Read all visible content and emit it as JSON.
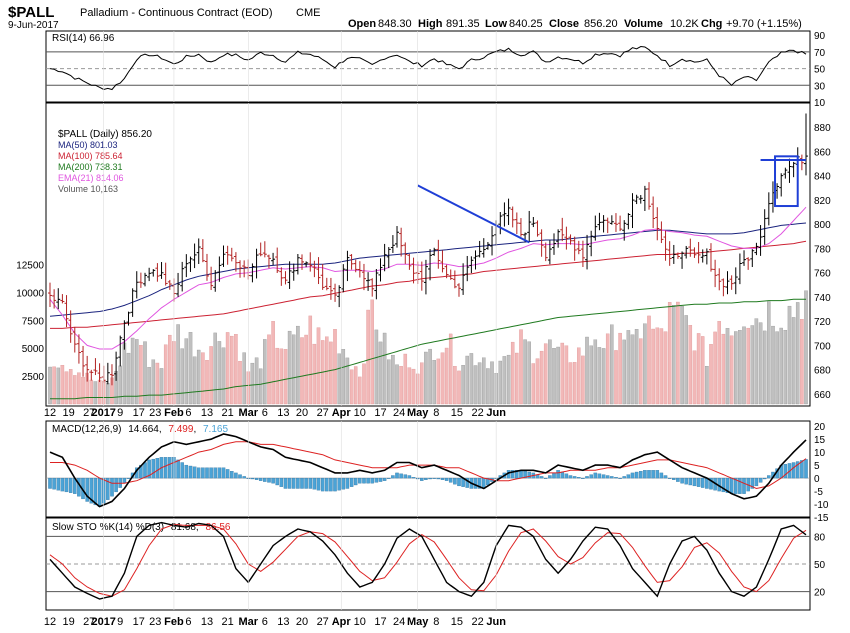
{
  "header": {
    "symbol": "$PALL",
    "name": "Palladium - Continuous Contract (EOD)",
    "exchange": "CME",
    "date": "9-Jun-2017",
    "open_label": "Open",
    "open": "848.30",
    "high_label": "High",
    "high": "891.35",
    "low_label": "Low",
    "low": "840.25",
    "close_label": "Close",
    "close": "856.20",
    "volume_label": "Volume",
    "volume": "10.2K",
    "chg_label": "Chg",
    "chg": "+9.70 (+1.15%)"
  },
  "colors": {
    "up": "#000000",
    "down": "#b22222",
    "ma50": "#1a237e",
    "ma100": "#cc2233",
    "ma200": "#1f7a1f",
    "ema21": "#e055e0",
    "vol_up": "#c0c0c0",
    "vol_down": "#f2b8b8",
    "trend": "#1f3fd6",
    "macd_hist": "#4ba3d6",
    "signal": "#dd2222"
  },
  "chart_data": [
    {
      "type": "line",
      "panel": "rsi",
      "legend": "RSI(14) 66.96",
      "ylim": [
        10,
        95
      ],
      "yticks": [
        10,
        30,
        50,
        70,
        90
      ],
      "levels": [
        30,
        50,
        70
      ],
      "x": [
        0,
        3,
        6,
        9,
        12,
        15,
        18,
        21,
        24,
        27,
        30,
        33,
        36,
        39,
        42,
        45,
        48,
        51,
        54,
        57,
        60,
        63,
        66,
        69,
        72,
        75,
        78,
        81,
        84,
        87,
        90,
        93,
        96,
        99,
        102,
        105,
        108,
        111,
        114,
        117,
        120,
        123,
        126,
        129,
        132,
        135,
        138,
        141,
        144,
        147,
        150,
        153,
        156,
        159,
        162,
        165,
        168,
        171,
        174,
        177,
        180,
        183
      ],
      "values": [
        50,
        47,
        39,
        33,
        27,
        26,
        38,
        62,
        67,
        63,
        55,
        64,
        67,
        57,
        67,
        66,
        60,
        69,
        66,
        58,
        69,
        67,
        61,
        52,
        63,
        61,
        54,
        63,
        67,
        58,
        54,
        62,
        55,
        50,
        60,
        64,
        70,
        73,
        67,
        70,
        58,
        64,
        62,
        57,
        67,
        69,
        66,
        74,
        75,
        66,
        54,
        62,
        58,
        60,
        42,
        30,
        40,
        36,
        57,
        68,
        72,
        67
      ]
    },
    {
      "type": "candlestick",
      "panel": "price",
      "legend": [
        "$PALL (Daily) 856.20",
        "MA(50) 801.03",
        "MA(100) 785.64",
        "MA(200) 738.31",
        "EMA(21) 814.06",
        "Volume 10,163"
      ],
      "ylim": [
        650,
        900
      ],
      "yticks": [
        660,
        680,
        700,
        720,
        740,
        760,
        780,
        800,
        820,
        840,
        860,
        880
      ],
      "volume_yticks": [
        "2500",
        "5000",
        "7500",
        "10000",
        "12500"
      ],
      "volume_ticks_values": [
        2500,
        5000,
        7500,
        10000,
        12500
      ],
      "volume_max": 16500,
      "x": [
        0,
        3,
        6,
        9,
        12,
        15,
        18,
        21,
        24,
        27,
        30,
        33,
        36,
        39,
        42,
        45,
        48,
        51,
        54,
        57,
        60,
        63,
        66,
        69,
        72,
        75,
        78,
        81,
        84,
        87,
        90,
        93,
        96,
        99,
        102,
        105,
        108,
        111,
        114,
        117,
        120,
        123,
        126,
        129,
        132,
        135,
        138,
        141,
        144,
        147,
        150,
        153,
        156,
        159,
        162,
        165,
        168,
        171,
        174,
        177,
        180,
        183
      ],
      "close": [
        740,
        734,
        698,
        681,
        672,
        678,
        720,
        752,
        762,
        758,
        742,
        770,
        778,
        752,
        776,
        772,
        758,
        778,
        772,
        752,
        772,
        768,
        750,
        738,
        770,
        764,
        746,
        776,
        790,
        764,
        756,
        778,
        758,
        748,
        770,
        780,
        800,
        810,
        792,
        802,
        776,
        790,
        786,
        775,
        800,
        804,
        796,
        820,
        828,
        798,
        768,
        780,
        772,
        774,
        752,
        752,
        770,
        780,
        820,
        842,
        850,
        856
      ],
      "volume": [
        4200,
        3800,
        3200,
        2400,
        1800,
        2100,
        4800,
        6000,
        4100,
        3700,
        6600,
        6000,
        5100,
        5300,
        6600,
        6100,
        3000,
        4000,
        6100,
        5200,
        5900,
        6900,
        5500,
        6300,
        4400,
        2800,
        8800,
        5200,
        3300,
        4100,
        3300,
        5200,
        5600,
        3900,
        4300,
        4200,
        3600,
        4000,
        5600,
        4800,
        5400,
        4500,
        4300,
        4800,
        6100,
        5200,
        7000,
        5000,
        7800,
        5900,
        7900,
        7800,
        6200,
        4200,
        7900,
        7000,
        8400,
        7700,
        8400,
        8200,
        8500,
        10200
      ],
      "ma50": [
        724,
        725,
        726,
        727,
        728,
        730,
        733,
        737,
        741,
        746,
        750,
        754,
        757,
        759,
        761,
        763,
        764,
        765,
        766,
        767,
        767,
        767,
        767,
        768,
        770,
        772,
        773,
        774,
        775,
        776,
        777,
        778,
        779,
        780,
        781,
        782,
        783,
        784,
        785,
        786,
        787,
        787,
        788,
        789,
        790,
        791,
        792,
        793,
        794,
        795,
        795,
        794,
        793,
        792,
        792,
        792,
        793,
        795,
        797,
        799,
        800,
        801
      ],
      "ma100": [
        714,
        714,
        715,
        715,
        716,
        717,
        718,
        719,
        720,
        721,
        722,
        723,
        724,
        725,
        726,
        728,
        730,
        732,
        734,
        736,
        738,
        740,
        741,
        743,
        745,
        747,
        749,
        750,
        752,
        753,
        755,
        756,
        757,
        758,
        759,
        761,
        762,
        763,
        764,
        765,
        766,
        767,
        768,
        769,
        770,
        771,
        772,
        773,
        774,
        775,
        775,
        776,
        776,
        777,
        778,
        779,
        780,
        781,
        782,
        783,
        784,
        786
      ],
      "ma200": [
        656,
        656,
        656,
        657,
        657,
        657,
        658,
        658,
        659,
        659,
        660,
        661,
        662,
        663,
        664,
        666,
        667,
        668,
        670,
        672,
        674,
        676,
        678,
        680,
        683,
        686,
        689,
        692,
        695,
        698,
        701,
        703,
        705,
        707,
        709,
        711,
        713,
        715,
        717,
        719,
        721,
        723,
        724,
        725,
        726,
        727,
        728,
        729,
        730,
        731,
        732,
        733,
        734,
        734,
        735,
        735,
        736,
        736,
        737,
        737,
        738,
        738
      ],
      "ema21": [
        738,
        725,
        710,
        700,
        697,
        697,
        703,
        712,
        722,
        731,
        738,
        744,
        750,
        752,
        756,
        759,
        760,
        762,
        764,
        763,
        764,
        765,
        764,
        761,
        762,
        762,
        761,
        763,
        767,
        767,
        766,
        768,
        767,
        765,
        766,
        768,
        772,
        777,
        780,
        784,
        783,
        784,
        784,
        783,
        785,
        787,
        788,
        791,
        795,
        796,
        794,
        793,
        791,
        790,
        786,
        782,
        780,
        780,
        784,
        792,
        803,
        814
      ]
    },
    {
      "type": "line",
      "panel": "macd",
      "legend": [
        "MACD(12,26,9)",
        "14.664",
        "7.499",
        "7.165"
      ],
      "ylim": [
        -15,
        22
      ],
      "yticks": [
        -15,
        -10,
        -5,
        0,
        5,
        10,
        15,
        20
      ],
      "x": [
        0,
        3,
        6,
        9,
        12,
        15,
        18,
        21,
        24,
        27,
        30,
        33,
        36,
        39,
        42,
        45,
        48,
        51,
        54,
        57,
        60,
        63,
        66,
        69,
        72,
        75,
        78,
        81,
        84,
        87,
        90,
        93,
        96,
        99,
        102,
        105,
        108,
        111,
        114,
        117,
        120,
        123,
        126,
        129,
        132,
        135,
        138,
        141,
        144,
        147,
        150,
        153,
        156,
        159,
        162,
        165,
        168,
        171,
        174,
        177,
        180,
        183
      ],
      "macd": [
        10,
        8,
        0,
        -7,
        -11,
        -9,
        -4,
        3,
        8,
        12,
        14,
        13,
        14,
        15,
        17,
        16,
        14,
        12,
        11,
        8,
        7,
        6,
        4,
        2,
        2,
        3,
        2,
        3,
        6,
        6,
        4,
        5,
        3,
        1,
        -2,
        -4,
        -1,
        2,
        3,
        3,
        2,
        5,
        4,
        3,
        5,
        5,
        4,
        7,
        9,
        10,
        7,
        4,
        2,
        0,
        -3,
        -6,
        -8,
        -7,
        -2,
        5,
        10,
        14.7
      ],
      "signal": [
        6,
        6,
        5,
        3,
        0,
        -2,
        -2,
        -1,
        1,
        4,
        6,
        8,
        10,
        11,
        13,
        14,
        14,
        13,
        13,
        12,
        11,
        10,
        9,
        7,
        6,
        5,
        4,
        4,
        4,
        5,
        5,
        5,
        4,
        4,
        2,
        0,
        -1,
        -1,
        0,
        1,
        2,
        2,
        3,
        3,
        3,
        4,
        4,
        5,
        6,
        7,
        7,
        6,
        5,
        4,
        2,
        0,
        -2,
        -4,
        -3,
        0,
        4,
        7.5
      ],
      "histogram": [
        -4,
        -5,
        -6,
        -9,
        -11,
        -7,
        -2,
        4,
        7,
        8,
        8,
        5,
        4,
        4,
        4,
        2,
        0,
        -1,
        -2,
        -4,
        -4,
        -4,
        -5,
        -5,
        -4,
        -2,
        -2,
        -1,
        2,
        1,
        -1,
        0,
        -1,
        -3,
        -4,
        -4,
        0,
        3,
        3,
        2,
        0,
        3,
        1,
        0,
        2,
        1,
        0,
        2,
        3,
        3,
        0,
        -2,
        -3,
        -4,
        -5,
        -6,
        -6,
        -3,
        1,
        5,
        6,
        7.2
      ]
    },
    {
      "type": "line",
      "panel": "stochastic",
      "legend": [
        "Slow STO %K(14) %D(3)",
        "81.68",
        "86.56"
      ],
      "ylim": [
        0,
        100
      ],
      "yticks": [
        20,
        50,
        80
      ],
      "levels": [
        20,
        50,
        80
      ],
      "x": [
        0,
        3,
        6,
        9,
        12,
        15,
        18,
        21,
        24,
        27,
        30,
        33,
        36,
        39,
        42,
        45,
        48,
        51,
        54,
        57,
        60,
        63,
        66,
        69,
        72,
        75,
        78,
        81,
        84,
        87,
        90,
        93,
        96,
        99,
        102,
        105,
        108,
        111,
        114,
        117,
        120,
        123,
        126,
        129,
        132,
        135,
        138,
        141,
        144,
        147,
        150,
        153,
        156,
        159,
        162,
        165,
        168,
        171,
        174,
        177,
        180,
        183
      ],
      "k": [
        55,
        40,
        25,
        18,
        12,
        15,
        40,
        80,
        92,
        95,
        92,
        90,
        94,
        92,
        80,
        45,
        30,
        50,
        70,
        80,
        88,
        85,
        75,
        60,
        40,
        25,
        30,
        50,
        78,
        88,
        80,
        55,
        30,
        20,
        15,
        30,
        70,
        92,
        90,
        80,
        55,
        40,
        55,
        75,
        90,
        88,
        70,
        45,
        30,
        15,
        50,
        75,
        80,
        65,
        40,
        20,
        15,
        25,
        55,
        88,
        92,
        81.7
      ],
      "d": [
        60,
        50,
        35,
        25,
        18,
        15,
        22,
        45,
        70,
        88,
        93,
        92,
        92,
        92,
        88,
        72,
        50,
        42,
        52,
        66,
        80,
        85,
        83,
        74,
        58,
        42,
        32,
        35,
        52,
        72,
        82,
        74,
        55,
        35,
        22,
        21,
        38,
        64,
        84,
        88,
        75,
        58,
        50,
        57,
        73,
        84,
        83,
        68,
        48,
        30,
        32,
        47,
        68,
        73,
        62,
        42,
        25,
        20,
        32,
        56,
        78,
        86.6
      ]
    }
  ],
  "x_axis": {
    "labels": [
      {
        "text": "12",
        "i": 0
      },
      {
        "text": "19",
        "i": 4.5
      },
      {
        "text": "27",
        "i": 9.5
      },
      {
        "text": "2017",
        "i": 13,
        "bold": true
      },
      {
        "text": "9",
        "i": 17
      },
      {
        "text": "17",
        "i": 21.5
      },
      {
        "text": "23",
        "i": 25.5
      },
      {
        "text": "Feb",
        "i": 30,
        "bold": true
      },
      {
        "text": "6",
        "i": 33.5
      },
      {
        "text": "13",
        "i": 38
      },
      {
        "text": "21",
        "i": 43
      },
      {
        "text": "Mar",
        "i": 48,
        "bold": true
      },
      {
        "text": "6",
        "i": 52
      },
      {
        "text": "13",
        "i": 56.5
      },
      {
        "text": "20",
        "i": 61
      },
      {
        "text": "27",
        "i": 66
      },
      {
        "text": "Apr",
        "i": 70.5,
        "bold": true
      },
      {
        "text": "10",
        "i": 75
      },
      {
        "text": "17",
        "i": 80
      },
      {
        "text": "24",
        "i": 84.5
      },
      {
        "text": "May",
        "i": 89,
        "bold": true
      },
      {
        "text": "8",
        "i": 93.5
      },
      {
        "text": "15",
        "i": 98.5
      },
      {
        "text": "22",
        "i": 103.5
      },
      {
        "text": "Jun",
        "i": 108,
        "bold": true
      }
    ]
  }
}
